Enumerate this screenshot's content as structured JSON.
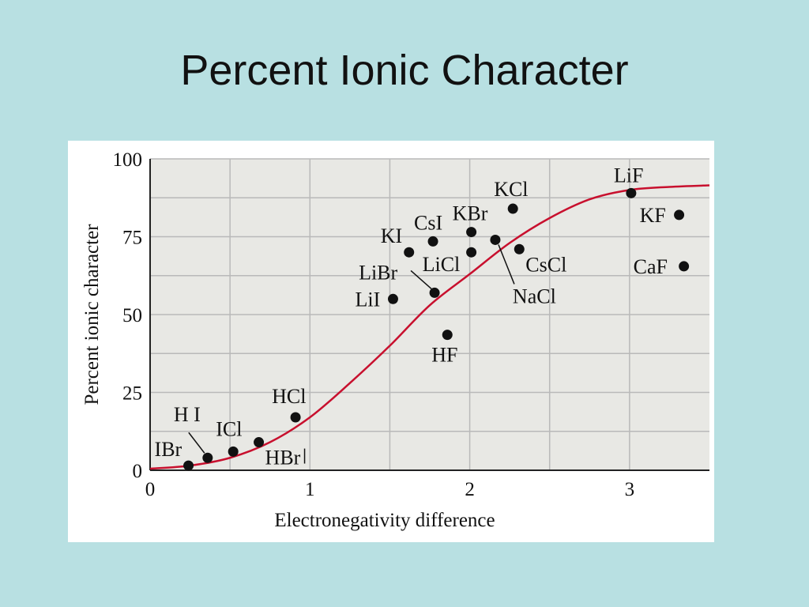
{
  "slide": {
    "title": "Percent Ionic Character"
  },
  "chart_data": {
    "type": "scatter",
    "xlabel": "Electronegativity difference",
    "ylabel": "Percent ionic character",
    "xlim": [
      0,
      3.5
    ],
    "ylim": [
      0,
      100
    ],
    "x_ticks": [
      "0",
      "1",
      "2",
      "3"
    ],
    "y_ticks": [
      "0",
      "25",
      "50",
      "75",
      "100"
    ],
    "grid": true,
    "colors": {
      "curve": "#c8102e",
      "points": "#111111",
      "plot_bg": "#e8e8e4",
      "grid": "#b9b9b9"
    },
    "points": [
      {
        "label": "IBr",
        "x": 0.24,
        "y": 1.5
      },
      {
        "label": "H I",
        "x": 0.36,
        "y": 4
      },
      {
        "label": "ICl",
        "x": 0.52,
        "y": 6
      },
      {
        "label": "HBr",
        "x": 0.68,
        "y": 9
      },
      {
        "label": "HCl",
        "x": 0.91,
        "y": 17
      },
      {
        "label": "LiI",
        "x": 1.52,
        "y": 55
      },
      {
        "label": "KI",
        "x": 1.62,
        "y": 70
      },
      {
        "label": "LiBr",
        "x": 1.78,
        "y": 57
      },
      {
        "label": "CsI",
        "x": 1.77,
        "y": 73.5
      },
      {
        "label": "HF",
        "x": 1.86,
        "y": 43.5
      },
      {
        "label": "KBr",
        "x": 2.01,
        "y": 76.5
      },
      {
        "label": "LiCl",
        "x": 2.01,
        "y": 70
      },
      {
        "label": "NaCl",
        "x": 2.16,
        "y": 74
      },
      {
        "label": "KCl",
        "x": 2.27,
        "y": 84
      },
      {
        "label": "CsCl",
        "x": 2.31,
        "y": 71
      },
      {
        "label": "LiF",
        "x": 3.01,
        "y": 89
      },
      {
        "label": "KF",
        "x": 3.31,
        "y": 82
      },
      {
        "label": "CaF",
        "x": 3.34,
        "y": 65.5
      }
    ],
    "curve": [
      [
        0,
        0.5
      ],
      [
        0.25,
        1.5
      ],
      [
        0.5,
        4
      ],
      [
        0.75,
        9
      ],
      [
        1.0,
        17
      ],
      [
        1.25,
        28
      ],
      [
        1.5,
        40
      ],
      [
        1.75,
        53
      ],
      [
        2.0,
        63
      ],
      [
        2.25,
        73
      ],
      [
        2.5,
        81
      ],
      [
        2.75,
        87
      ],
      [
        3.0,
        90
      ],
      [
        3.25,
        91
      ],
      [
        3.5,
        91.5
      ]
    ]
  }
}
